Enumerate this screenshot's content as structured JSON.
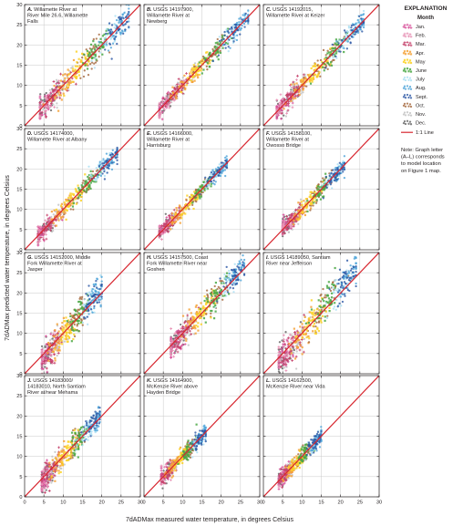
{
  "chart_data": {
    "type": "scatter",
    "xlabel": "7dADMax measured water temperature, in degrees Celsius",
    "ylabel": "7dADMax predicted water temperature, in degrees Celsius",
    "xlim": [
      0,
      30
    ],
    "ylim": [
      0,
      30
    ],
    "x_ticks": [
      0,
      5,
      10,
      15,
      20,
      25,
      30
    ],
    "y_ticks": [
      0,
      5,
      10,
      15,
      20,
      25,
      30
    ],
    "reference_line": {
      "label": "1:1 Line",
      "color": "#d7262f"
    },
    "legend": {
      "title": "EXPLANATION",
      "subtitle": "Month",
      "placement": "right",
      "items": [
        {
          "label": "Jan.",
          "color": "#d8509a",
          "marker": "+"
        },
        {
          "label": "Feb.",
          "color": "#e78fb3",
          "marker": "+"
        },
        {
          "label": "Mar.",
          "color": "#c5426b",
          "marker": "+"
        },
        {
          "label": "Apr.",
          "color": "#f4a23a",
          "marker": "square"
        },
        {
          "label": "May",
          "color": "#fcd228",
          "marker": "square"
        },
        {
          "label": "June",
          "color": "#4aa845",
          "marker": "square"
        },
        {
          "label": "July",
          "color": "#a9dff2",
          "marker": "circle"
        },
        {
          "label": "Aug.",
          "color": "#4ba3d8",
          "marker": "circle"
        },
        {
          "label": "Sept.",
          "color": "#2a56a4",
          "marker": "circle"
        },
        {
          "label": "Oct.",
          "color": "#a4673b",
          "marker": "circle"
        },
        {
          "label": "Nov.",
          "color": "#c0c0c0",
          "marker": "circle"
        },
        {
          "label": "Dec.",
          "color": "#616161",
          "marker": "circle"
        }
      ]
    },
    "note": [
      "Note: Graph letter",
      "(A–L) corresponds",
      "to model location",
      "on Figure 1 map."
    ],
    "panels": [
      {
        "letter": "A.",
        "lines": [
          "Willamette River at",
          "River Mile 26.6, Willamette",
          "Falls"
        ],
        "range": [
          4,
          27
        ],
        "spread": 1.5,
        "tilt": 0
      },
      {
        "letter": "B.",
        "lines": [
          "USGS 14197900,",
          "Willamette River at",
          "Newberg"
        ],
        "range": [
          4,
          27
        ],
        "spread": 1.1,
        "tilt": 0
      },
      {
        "letter": "C.",
        "lines": [
          "USGS 14192015,",
          "Willamette River at Keizer"
        ],
        "range": [
          3.5,
          26
        ],
        "spread": 1.2,
        "tilt": 0
      },
      {
        "letter": "D.",
        "lines": [
          "USGS 14174000,",
          "Willamette River at Albany"
        ],
        "range": [
          3.5,
          24
        ],
        "spread": 1.1,
        "tilt": 0
      },
      {
        "letter": "E.",
        "lines": [
          "USGS 14166000,",
          "Willamette River at",
          "Harrisburg"
        ],
        "range": [
          4,
          21.5
        ],
        "spread": 0.9,
        "tilt": 0
      },
      {
        "letter": "F.",
        "lines": [
          "USGS 14158100,",
          "Willamette River at",
          "Owosso Bridge"
        ],
        "range": [
          5,
          21
        ],
        "spread": 1.0,
        "tilt": -0.02
      },
      {
        "letter": "G.",
        "lines": [
          "USGS 14152000, Middle",
          "Fork Willamette River at",
          "Jasper"
        ],
        "range": [
          4.5,
          20
        ],
        "spread": 1.8,
        "tilt": 0.18
      },
      {
        "letter": "H.",
        "lines": [
          "USGS 14157500, Coast",
          "Fork Willamette River near",
          "Goshen"
        ],
        "range": [
          7,
          26
        ],
        "spread": 1.5,
        "tilt": 0.08
      },
      {
        "letter": "I.",
        "lines": [
          "USGS 14189050, Santiam",
          "River near Jefferson"
        ],
        "range": [
          4,
          24
        ],
        "spread": 2.0,
        "tilt": 0.15
      },
      {
        "letter": "J.",
        "lines": [
          "USGS 14183000/",
          "14183010, North Santiam",
          "River at/near Mehama"
        ],
        "range": [
          4.5,
          19.5
        ],
        "spread": 1.5,
        "tilt": 0.1
      },
      {
        "letter": "K.",
        "lines": [
          "USGS 14164900,",
          "McKenzie River above",
          "Hayden Bridge"
        ],
        "range": [
          4.5,
          16
        ],
        "spread": 1.0,
        "tilt": 0.0
      },
      {
        "letter": "L.",
        "lines": [
          "USGS 14162500,",
          "McKenzie River near Vida"
        ],
        "range": [
          4,
          15
        ],
        "spread": 1.0,
        "tilt": 0.0
      }
    ]
  }
}
